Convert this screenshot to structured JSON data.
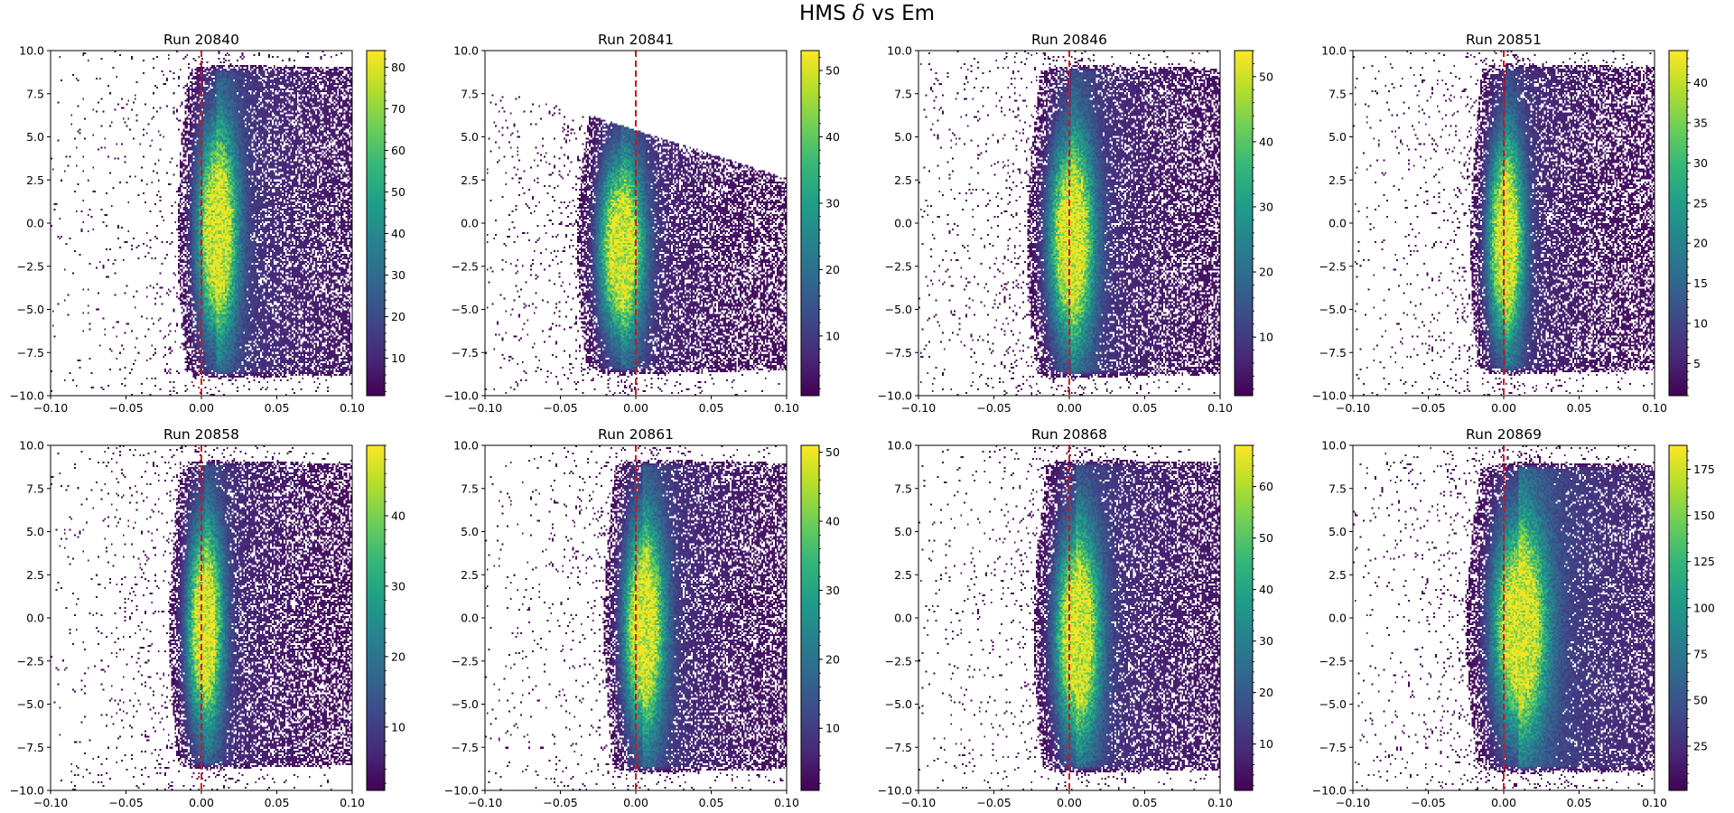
{
  "figure": {
    "title_prefix": "HMS ",
    "title_symbol": "δ",
    "title_suffix": " vs Em",
    "background": "#ffffff"
  },
  "colors": {
    "cutoff_line": "#dd1111",
    "axis": "#000000",
    "viridis": [
      "#440154",
      "#482878",
      "#3e4989",
      "#31688e",
      "#26828e",
      "#1f9e89",
      "#35b779",
      "#6ece58",
      "#b5de2b",
      "#fde725"
    ]
  },
  "chart_data": [
    {
      "type": "heatmap",
      "title": "Run 20840",
      "xlim": [
        -0.1,
        0.1
      ],
      "ylim": [
        -10.0,
        10.0
      ],
      "xticks": [
        "−0.10",
        "−0.05",
        "0.00",
        "0.05",
        "0.10"
      ],
      "yticks": [
        "−10.0",
        "−7.5",
        "−5.0",
        "−2.5",
        "0.0",
        "2.5",
        "5.0",
        "7.5",
        "10.0"
      ],
      "vline_x": 0.0,
      "colorbar": {
        "min": 1,
        "max": 84,
        "ticks": [
          10,
          20,
          30,
          40,
          50,
          60,
          70,
          80
        ]
      },
      "distribution": {
        "center_x": 0.01,
        "center_y": -0.5,
        "sigma_x": 0.009,
        "sigma_y": 4.0,
        "tail_x": 0.06,
        "tail_level": 0.12,
        "halo_level": 0.015,
        "y_min": -8.5,
        "y_max": 8.7,
        "top_cut": null
      }
    },
    {
      "type": "heatmap",
      "title": "Run 20841",
      "xlim": [
        -0.1,
        0.1
      ],
      "ylim": [
        -10.0,
        10.0
      ],
      "xticks": [
        "−0.10",
        "−0.05",
        "0.00",
        "0.05",
        "0.10"
      ],
      "yticks": [
        "−10.0",
        "−7.5",
        "−5.0",
        "−2.5",
        "0.0",
        "2.5",
        "5.0",
        "7.5",
        "10.0"
      ],
      "vline_x": 0.0,
      "colorbar": {
        "min": 1,
        "max": 53,
        "ticks": [
          10,
          20,
          30,
          40,
          50
        ]
      },
      "distribution": {
        "center_x": -0.01,
        "center_y": -1.5,
        "sigma_x": 0.01,
        "sigma_y": 3.5,
        "tail_x": 0.05,
        "tail_level": 0.1,
        "halo_level": 0.02,
        "y_min": -8.3,
        "y_max": 8.3,
        "top_cut": {
          "x0": -0.1,
          "y0": 8.2,
          "x1": 0.1,
          "y1": 2.6
        }
      }
    },
    {
      "type": "heatmap",
      "title": "Run 20846",
      "xlim": [
        -0.1,
        0.1
      ],
      "ylim": [
        -10.0,
        10.0
      ],
      "xticks": [
        "−0.10",
        "−0.05",
        "0.00",
        "0.05",
        "0.10"
      ],
      "yticks": [
        "−10.0",
        "−7.5",
        "−5.0",
        "−2.5",
        "0.0",
        "2.5",
        "5.0",
        "7.5",
        "10.0"
      ],
      "vline_x": 0.0,
      "colorbar": {
        "min": 1,
        "max": 54,
        "ticks": [
          10,
          20,
          30,
          40,
          50
        ]
      },
      "distribution": {
        "center_x": 0.001,
        "center_y": -1.0,
        "sigma_x": 0.01,
        "sigma_y": 4.0,
        "tail_x": 0.05,
        "tail_level": 0.12,
        "halo_level": 0.02,
        "y_min": -8.5,
        "y_max": 8.7,
        "top_cut": null
      }
    },
    {
      "type": "heatmap",
      "title": "Run 20851",
      "xlim": [
        -0.1,
        0.1
      ],
      "ylim": [
        -10.0,
        10.0
      ],
      "xticks": [
        "−0.10",
        "−0.05",
        "0.00",
        "0.05",
        "0.10"
      ],
      "yticks": [
        "−10.0",
        "−7.5",
        "−5.0",
        "−2.5",
        "0.0",
        "2.5",
        "5.0",
        "7.5",
        "10.0"
      ],
      "vline_x": 0.0,
      "colorbar": {
        "min": 1,
        "max": 44,
        "ticks": [
          5,
          10,
          15,
          20,
          25,
          30,
          35,
          40
        ]
      },
      "distribution": {
        "center_x": 0.001,
        "center_y": -1.0,
        "sigma_x": 0.008,
        "sigma_y": 4.0,
        "tail_x": 0.05,
        "tail_level": 0.1,
        "halo_level": 0.015,
        "y_min": -8.3,
        "y_max": 8.8,
        "top_cut": null
      }
    },
    {
      "type": "heatmap",
      "title": "Run 20858",
      "xlim": [
        -0.1,
        0.1
      ],
      "ylim": [
        -10.0,
        10.0
      ],
      "xticks": [
        "−0.10",
        "−0.05",
        "0.00",
        "0.05",
        "0.10"
      ],
      "yticks": [
        "−10.0",
        "−7.5",
        "−5.0",
        "−2.5",
        "0.0",
        "2.5",
        "5.0",
        "7.5",
        "10.0"
      ],
      "vline_x": 0.0,
      "colorbar": {
        "min": 1,
        "max": 50,
        "ticks": [
          10,
          20,
          30,
          40
        ]
      },
      "distribution": {
        "center_x": 0.002,
        "center_y": -0.5,
        "sigma_x": 0.008,
        "sigma_y": 4.0,
        "tail_x": 0.05,
        "tail_level": 0.1,
        "halo_level": 0.015,
        "y_min": -8.3,
        "y_max": 8.7,
        "top_cut": null
      }
    },
    {
      "type": "heatmap",
      "title": "Run 20861",
      "xlim": [
        -0.1,
        0.1
      ],
      "ylim": [
        -10.0,
        10.0
      ],
      "xticks": [
        "−0.10",
        "−0.05",
        "0.00",
        "0.05",
        "0.10"
      ],
      "yticks": [
        "−10.0",
        "−7.5",
        "−5.0",
        "−2.5",
        "0.0",
        "2.5",
        "5.0",
        "7.5",
        "10.0"
      ],
      "vline_x": 0.0,
      "colorbar": {
        "min": 1,
        "max": 51,
        "ticks": [
          10,
          20,
          30,
          40,
          50
        ]
      },
      "distribution": {
        "center_x": 0.005,
        "center_y": -0.5,
        "sigma_x": 0.009,
        "sigma_y": 4.0,
        "tail_x": 0.05,
        "tail_level": 0.12,
        "halo_level": 0.015,
        "y_min": -8.5,
        "y_max": 8.7,
        "top_cut": null
      }
    },
    {
      "type": "heatmap",
      "title": "Run 20868",
      "xlim": [
        -0.1,
        0.1
      ],
      "ylim": [
        -10.0,
        10.0
      ],
      "xticks": [
        "−0.10",
        "−0.05",
        "0.00",
        "0.05",
        "0.10"
      ],
      "yticks": [
        "−10.0",
        "−7.5",
        "−5.0",
        "−2.5",
        "0.0",
        "2.5",
        "5.0",
        "7.5",
        "10.0"
      ],
      "vline_x": 0.0,
      "colorbar": {
        "min": 1,
        "max": 68,
        "ticks": [
          10,
          20,
          30,
          40,
          50,
          60
        ]
      },
      "distribution": {
        "center_x": 0.005,
        "center_y": -1.0,
        "sigma_x": 0.01,
        "sigma_y": 4.0,
        "tail_x": 0.06,
        "tail_level": 0.12,
        "halo_level": 0.015,
        "y_min": -8.5,
        "y_max": 8.7,
        "top_cut": null
      }
    },
    {
      "type": "heatmap",
      "title": "Run 20869",
      "xlim": [
        -0.1,
        0.1
      ],
      "ylim": [
        -10.0,
        10.0
      ],
      "xticks": [
        "−0.10",
        "−0.05",
        "0.00",
        "0.05",
        "0.10"
      ],
      "yticks": [
        "−10.0",
        "−7.5",
        "−5.0",
        "−2.5",
        "0.0",
        "2.5",
        "5.0",
        "7.5",
        "10.0"
      ],
      "vline_x": 0.0,
      "colorbar": {
        "min": 1,
        "max": 188,
        "ticks": [
          25,
          50,
          75,
          100,
          125,
          150,
          175
        ]
      },
      "distribution": {
        "center_x": 0.01,
        "center_y": -0.5,
        "sigma_x": 0.012,
        "sigma_y": 4.0,
        "tail_x": 0.08,
        "tail_level": 0.15,
        "halo_level": 0.02,
        "y_min": -8.5,
        "y_max": 8.5,
        "top_cut": null
      }
    }
  ]
}
